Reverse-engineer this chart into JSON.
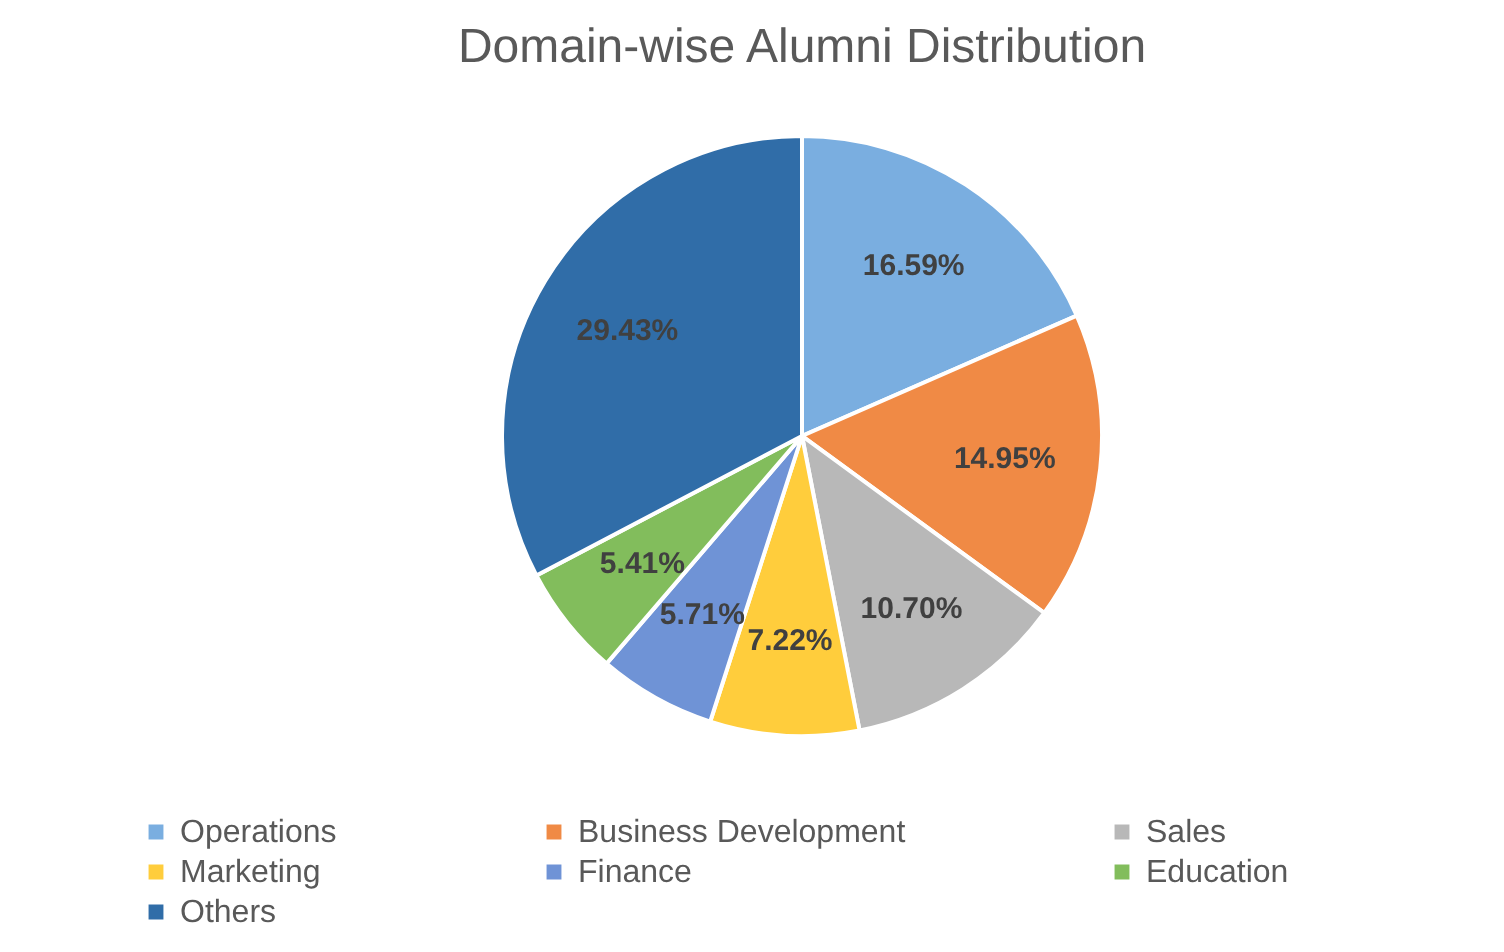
{
  "chart_data": {
    "type": "pie",
    "title": "Domain-wise Alumni Distribution",
    "categories": [
      "Operations",
      "Business Development",
      "Sales",
      "Marketing",
      "Finance",
      "Education",
      "Others"
    ],
    "values": [
      16.59,
      14.95,
      10.7,
      7.22,
      5.71,
      5.41,
      29.43
    ],
    "colors": [
      "#7aaee0",
      "#f08a45",
      "#b8b8b8",
      "#ffcd3c",
      "#6f93d6",
      "#82bd5c",
      "#306da8"
    ],
    "value_labels": [
      "16.59%",
      "14.95%",
      "10.70%",
      "7.22%",
      "5.71%",
      "5.41%",
      "29.43%"
    ],
    "legend": "bottom"
  }
}
